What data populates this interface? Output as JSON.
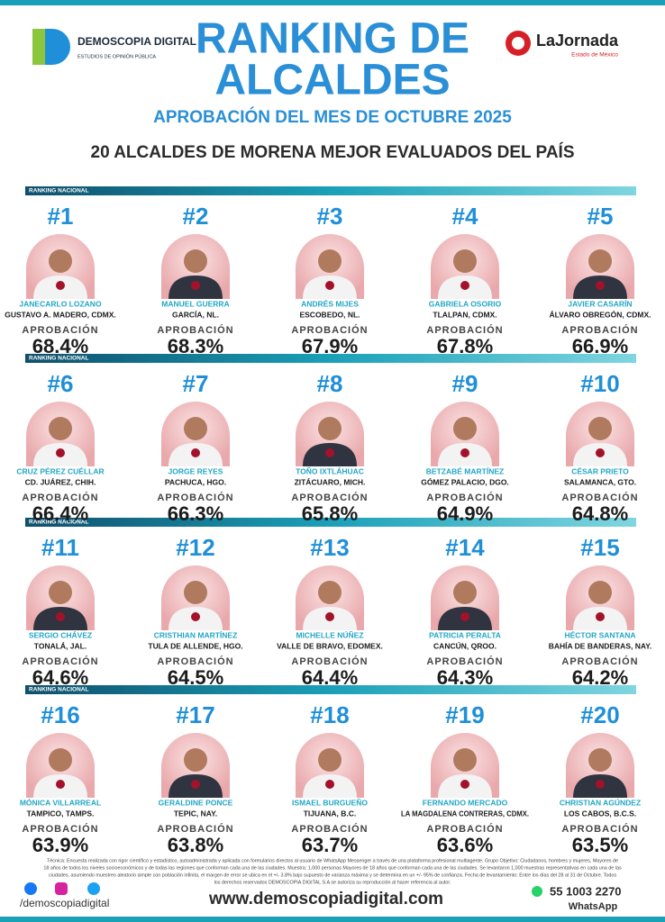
{
  "header": {
    "brand_name": "DEMOSCOPIA DIGITAL",
    "brand_tagline": "ESTUDIOS DE OPINIÓN PÚBLICA",
    "title_line1": "RANKING DE",
    "title_line2": "ALCALDES",
    "subtitle": "APROBACIÓN DEL MES DE OCTUBRE 2025",
    "partner_name": "LaJornada",
    "partner_region": "Estado de México",
    "heading": "20 ALCALDES DE MORENA MEJOR EVALUADOS DEL PAÍS"
  },
  "section_label": "RANKING NACIONAL",
  "approval_label": "APROBACIÓN",
  "entries": [
    {
      "rank": "#1",
      "name": "JANECARLO LOZANO",
      "place": "GUSTAVO A. MADERO, CDMX.",
      "approval": "68.4%"
    },
    {
      "rank": "#2",
      "name": "MANUEL GUERRA",
      "place": "GARCÍA, NL.",
      "approval": "68.3%"
    },
    {
      "rank": "#3",
      "name": "ANDRÉS MIJES",
      "place": "ESCOBEDO, NL.",
      "approval": "67.9%"
    },
    {
      "rank": "#4",
      "name": "GABRIELA OSORIO",
      "place": "TLALPAN, CDMX.",
      "approval": "67.8%"
    },
    {
      "rank": "#5",
      "name": "JAVIER CASARÍN",
      "place": "ÁLVARO OBREGÓN, CDMX.",
      "approval": "66.9%"
    },
    {
      "rank": "#6",
      "name": "CRUZ PÉREZ CUÉLLAR",
      "place": "CD. JUÁREZ, CHIH.",
      "approval": "66.4%"
    },
    {
      "rank": "#7",
      "name": "JORGE REYES",
      "place": "PACHUCA, HGO.",
      "approval": "66.3%"
    },
    {
      "rank": "#8",
      "name": "TOÑO IXTLÁHUAC",
      "place": "ZITÁCUARO, MICH.",
      "approval": "65.8%"
    },
    {
      "rank": "#9",
      "name": "BETZABÉ MARTÍNEZ",
      "place": "GÓMEZ PALACIO, DGO.",
      "approval": "64.9%"
    },
    {
      "rank": "#10",
      "name": "CÉSAR PRIETO",
      "place": "SALAMANCA, GTO.",
      "approval": "64.8%"
    },
    {
      "rank": "#11",
      "name": "SERGIO CHÁVEZ",
      "place": "TONALÁ, JAL.",
      "approval": "64.6%"
    },
    {
      "rank": "#12",
      "name": "CRISTHIAN MARTÍNEZ",
      "place": "TULA DE ALLENDE, HGO.",
      "approval": "64.5%"
    },
    {
      "rank": "#13",
      "name": "MICHELLE NÚÑEZ",
      "place": "VALLE DE BRAVO, EDOMEX.",
      "approval": "64.4%"
    },
    {
      "rank": "#14",
      "name": "PATRICIA PERALTA",
      "place": "CANCÚN, QROO.",
      "approval": "64.3%"
    },
    {
      "rank": "#15",
      "name": "HÉCTOR SANTANA",
      "place": "BAHÍA DE BANDERAS, NAY.",
      "approval": "64.2%"
    },
    {
      "rank": "#16",
      "name": "MÓNICA VILLARREAL",
      "place": "TAMPICO, TAMPS.",
      "approval": "63.9%"
    },
    {
      "rank": "#17",
      "name": "GERALDINE PONCE",
      "place": "TEPIC, NAY.",
      "approval": "63.8%"
    },
    {
      "rank": "#18",
      "name": "ISMAEL BURGUEÑO",
      "place": "TIJUANA, B.C.",
      "approval": "63.7%"
    },
    {
      "rank": "#19",
      "name": "FERNANDO MERCADO",
      "place": "LA MAGDALENA CONTRERAS, CDMX.",
      "approval": "63.6%"
    },
    {
      "rank": "#20",
      "name": "CHRISTIAN AGÚNDEZ",
      "place": "LOS CABOS, B.C.S.",
      "approval": "63.5%"
    }
  ],
  "footer": {
    "note_lines": [
      "Técnica: Encuesta realizada con rigor científico y estadístico, autoadministrada y aplicada con formularios directos al usuario de WhatsApp Messenger a través de una plataforma profesional multiagente. Grupo Objetivo: Ciudadanos, hombres y mujeres, Mayores de",
      "18 años de todos los niveles socioeconómicos y de todas las regiones que conforman cada una de las ciudades. Muestra: 1,000 personas Mayores de 18 años que conforman cada una de las ciudades. Se levantaron 1,000 muestras representativas en cada una de las",
      "ciudades, asumiendo muestreo aleatorio simple con población infinita, el margen de error se ubica en el +/- 3.8% bajo supuesto de varianza máxima y se determina en un +/- 95% de confianza. Fecha de levantamiento: Entre los días del 28 al 31 de Octubre. Todos",
      "los derechos reservados DEMOSCOPIA DIGITAL S.A se autoriza su reproducción al hacer referencia al autor."
    ],
    "social_handle": "/demoscopiadigital",
    "website": "www.demoscopiadigital.com",
    "phone": "55 1003 2270",
    "phone_label": "WhatsApp"
  }
}
